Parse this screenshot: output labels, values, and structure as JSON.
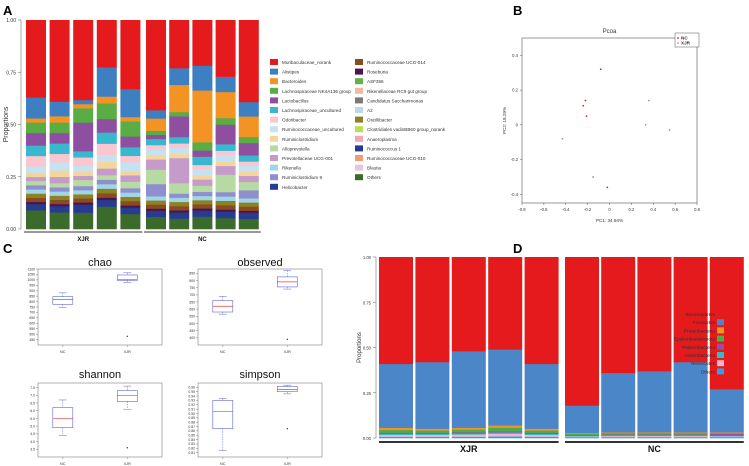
{
  "panel_letters": [
    "A",
    "B",
    "C",
    "D"
  ],
  "colors": {
    "Muribaculaceae_norank": "#e41a1c",
    "Alistipes": "#3d7fc1",
    "Bacteroides": "#f39323",
    "Lachnospiraceae NK4A136 group": "#5aac44",
    "Lactobacillus": "#8e4fa0",
    "Lachnospiraceae_uncultured": "#37b8cf",
    "Odoribacter": "#fac6cf",
    "Ruminococcaceae_uncultured": "#c6e2f0",
    "Ruminiclostridium": "#f4d69c",
    "Alloprevotella": "#b7daa2",
    "Prevotellaceae UCG-001": "#c59bc9",
    "Rikenella": "#9fd5e4",
    "Ruminiclostridium 9": "#8f8fcf",
    "Helicobacter": "#253c8f",
    "Ruminococcaceae UCG-014": "#8a4b1f",
    "Roseburia": "#4b1451",
    "ASF356": "#60b348",
    "Rikenellaceae RC9 gut group": "#f2b9a0",
    "Candidatus Saccharimonas": "#7a7a7a",
    "A2": "#bcd9ec",
    "Oscillibacter": "#8d8223",
    "Clostridiales vadinBB60 group_norank": "#b9e04d",
    "Anaeroplasma": "#f6a3b7",
    "Ruminococcus 1": "#283a8f",
    "Ruminococcaceae UCG-010": "#f39b74",
    "Blautia": "#e8c5df",
    "Others": "#3b6b2a",
    "Bacteroidetes": "#e41a1c",
    "Firmicutes": "#4a86c8",
    "Proteobacteria": "#f39323",
    "Epsilonbacteraeota": "#4cad4a",
    "Patescibacteria": "#984ea3",
    "Actinobacteria": "#37b8cf",
    "Tenericutes": "#f7b6c8",
    "OthersD": "#2f9fe8",
    "boxLine": "#5a64d6",
    "medianLine": "#e8413a"
  },
  "chart_data": [
    {
      "panel": "A",
      "type": "bar",
      "stacked": true,
      "ylabel": "Proportions",
      "yticks": [
        "0.00",
        "0.25",
        "0.50",
        "0.75",
        "1.00"
      ],
      "ylim": [
        0,
        1
      ],
      "groups": [
        {
          "label": "XJR",
          "samples": 5
        },
        {
          "label": "NC",
          "samples": 5
        }
      ],
      "series_order_bottom_to_top": [
        "Others",
        "Helicobacter",
        "Ruminococcus 1",
        "Roseburia",
        "Ruminococcaceae UCG-014",
        "Oscillibacter",
        "Rikenella",
        "Ruminiclostridium 9",
        "Alloprevotella",
        "Prevotellaceae UCG-001",
        "Ruminiclostridium",
        "Ruminococcaceae_uncultured",
        "Odoribacter",
        "Lachnospiraceae_uncultured",
        "Lactobacillus",
        "Lachnospiraceae NK4A136 group",
        "Bacteroides",
        "Alistipes",
        "Muribaculaceae_norank"
      ],
      "samples": [
        {
          "Others": 0.09,
          "Helicobacter": 0.02,
          "Ruminococcus 1": 0.01,
          "Roseburia": 0.01,
          "Ruminococcaceae UCG-014": 0.02,
          "Oscillibacter": 0.02,
          "Rikenella": 0.02,
          "Ruminiclostridium 9": 0.02,
          "Alloprevotella": 0.02,
          "Prevotellaceae UCG-001": 0.02,
          "Ruminiclostridium": 0.02,
          "Ruminococcaceae_uncultured": 0.03,
          "Odoribacter": 0.05,
          "Lachnospiraceae_uncultured": 0.05,
          "Lactobacillus": 0.06,
          "Lachnospiraceae NK4A136 group": 0.05,
          "Bacteroides": 0.02,
          "Alistipes": 0.1,
          "Muribaculaceae_norank": 0.37
        },
        {
          "Others": 0.08,
          "Helicobacter": 0.02,
          "Ruminococcus 1": 0.01,
          "Roseburia": 0.01,
          "Ruminococcaceae UCG-014": 0.02,
          "Oscillibacter": 0.02,
          "Rikenella": 0.02,
          "Ruminiclostridium 9": 0.02,
          "Alloprevotella": 0.02,
          "Prevotellaceae UCG-001": 0.03,
          "Ruminiclostridium": 0.03,
          "Ruminococcaceae_uncultured": 0.04,
          "Odoribacter": 0.04,
          "Lachnospiraceae_uncultured": 0.05,
          "Lactobacillus": 0.05,
          "Lachnospiraceae NK4A136 group": 0.05,
          "Bacteroides": 0.03,
          "Alistipes": 0.07,
          "Muribaculaceae_norank": 0.39
        },
        {
          "Others": 0.08,
          "Helicobacter": 0.02,
          "Ruminococcus 1": 0.02,
          "Roseburia": 0.01,
          "Ruminococcaceae UCG-014": 0.02,
          "Oscillibacter": 0.02,
          "Rikenella": 0.02,
          "Ruminiclostridium 9": 0.02,
          "Alloprevotella": 0.03,
          "Prevotellaceae UCG-001": 0.02,
          "Ruminiclostridium": 0.02,
          "Ruminococcaceae_uncultured": 0.03,
          "Odoribacter": 0.04,
          "Lachnospiraceae_uncultured": 0.03,
          "Lactobacillus": 0.14,
          "Lachnospiraceae NK4A136 group": 0.07,
          "Bacteroides": 0.02,
          "Alistipes": 0.02,
          "Muribaculaceae_norank": 0.39
        },
        {
          "Others": 0.1,
          "Helicobacter": 0.02,
          "Ruminococcus 1": 0.01,
          "Roseburia": 0.01,
          "Ruminococcaceae UCG-014": 0.02,
          "Oscillibacter": 0.02,
          "Rikenella": 0.02,
          "Ruminiclostridium 9": 0.02,
          "Alloprevotella": 0.02,
          "Prevotellaceae UCG-001": 0.03,
          "Ruminiclostridium": 0.03,
          "Ruminococcaceae_uncultured": 0.03,
          "Odoribacter": 0.05,
          "Lachnospiraceae_uncultured": 0.05,
          "Lactobacillus": 0.06,
          "Lachnospiraceae NK4A136 group": 0.07,
          "Bacteroides": 0.03,
          "Alistipes": 0.13,
          "Muribaculaceae_norank": 0.21
        },
        {
          "Others": 0.07,
          "Helicobacter": 0.02,
          "Ruminococcus 1": 0.01,
          "Roseburia": 0.01,
          "Ruminococcaceae UCG-014": 0.02,
          "Oscillibacter": 0.02,
          "Rikenella": 0.02,
          "Ruminiclostridium 9": 0.02,
          "Alloprevotella": 0.03,
          "Prevotellaceae UCG-001": 0.03,
          "Ruminiclostridium": 0.02,
          "Ruminococcaceae_uncultured": 0.04,
          "Odoribacter": 0.03,
          "Lachnospiraceae_uncultured": 0.04,
          "Lactobacillus": 0.05,
          "Lachnospiraceae NK4A136 group": 0.07,
          "Bacteroides": 0.02,
          "Alistipes": 0.13,
          "Muribaculaceae_norank": 0.32
        },
        {
          "Others": 0.06,
          "Helicobacter": 0.02,
          "Ruminococcus 1": 0.01,
          "Roseburia": 0.01,
          "Ruminococcaceae UCG-014": 0.02,
          "Oscillibacter": 0.02,
          "Rikenella": 0.02,
          "Ruminiclostridium 9": 0.06,
          "Alloprevotella": 0.07,
          "Prevotellaceae UCG-001": 0.05,
          "Ruminiclostridium": 0.02,
          "Ruminococcaceae_uncultured": 0.03,
          "Odoribacter": 0.02,
          "Lachnospiraceae_uncultured": 0.03,
          "Lactobacillus": 0.02,
          "Lachnospiraceae NK4A136 group": 0.02,
          "Bacteroides": 0.06,
          "Alistipes": 0.04,
          "Muribaculaceae_norank": 0.44
        },
        {
          "Others": 0.05,
          "Helicobacter": 0.02,
          "Ruminococcus 1": 0.01,
          "Roseburia": 0.01,
          "Ruminococcaceae UCG-014": 0.02,
          "Oscillibacter": 0.02,
          "Rikenella": 0.02,
          "Ruminiclostridium 9": 0.02,
          "Alloprevotella": 0.05,
          "Prevotellaceae UCG-001": 0.12,
          "Ruminiclostridium": 0.02,
          "Ruminococcaceae_uncultured": 0.03,
          "Odoribacter": 0.02,
          "Lachnospiraceae_uncultured": 0.03,
          "Lactobacillus": 0.1,
          "Lachnospiraceae NK4A136 group": 0.02,
          "Bacteroides": 0.13,
          "Alistipes": 0.08,
          "Muribaculaceae_norank": 0.23
        },
        {
          "Others": 0.06,
          "Helicobacter": 0.02,
          "Ruminococcus 1": 0.01,
          "Roseburia": 0.01,
          "Ruminococcaceae UCG-014": 0.02,
          "Oscillibacter": 0.02,
          "Rikenella": 0.02,
          "Ruminiclostridium 9": 0.02,
          "Alloprevotella": 0.03,
          "Prevotellaceae UCG-001": 0.03,
          "Ruminiclostridium": 0.02,
          "Ruminococcaceae_uncultured": 0.03,
          "Odoribacter": 0.02,
          "Lachnospiraceae_uncultured": 0.04,
          "Lactobacillus": 0.03,
          "Lachnospiraceae NK4A136 group": 0.04,
          "Bacteroides": 0.25,
          "Alistipes": 0.12,
          "Muribaculaceae_norank": 0.22
        },
        {
          "Others": 0.05,
          "Helicobacter": 0.02,
          "Ruminococcus 1": 0.01,
          "Roseburia": 0.01,
          "Ruminococcaceae UCG-014": 0.02,
          "Oscillibacter": 0.02,
          "Rikenella": 0.02,
          "Ruminiclostridium 9": 0.02,
          "Alloprevotella": 0.08,
          "Prevotellaceae UCG-001": 0.04,
          "Ruminiclostridium": 0.02,
          "Ruminococcaceae_uncultured": 0.03,
          "Odoribacter": 0.02,
          "Lachnospiraceae_uncultured": 0.03,
          "Lactobacillus": 0.09,
          "Lachnospiraceae NK4A136 group": 0.03,
          "Bacteroides": 0.12,
          "Alistipes": 0.07,
          "Muribaculaceae_norank": 0.26
        },
        {
          "Others": 0.05,
          "Helicobacter": 0.02,
          "Ruminococcus 1": 0.01,
          "Roseburia": 0.01,
          "Ruminococcaceae UCG-014": 0.02,
          "Oscillibacter": 0.02,
          "Rikenella": 0.02,
          "Ruminiclostridium 9": 0.04,
          "Alloprevotella": 0.04,
          "Prevotellaceae UCG-001": 0.03,
          "Ruminiclostridium": 0.02,
          "Ruminococcaceae_uncultured": 0.03,
          "Odoribacter": 0.02,
          "Lachnospiraceae_uncultured": 0.03,
          "Lactobacillus": 0.06,
          "Lachnospiraceae NK4A136 group": 0.03,
          "Bacteroides": 0.1,
          "Alistipes": 0.07,
          "Muribaculaceae_norank": 0.4
        }
      ],
      "legend": [
        "Muribaculaceae_norank",
        "Alistipes",
        "Bacteroides",
        "Lachnospiraceae NK4A136 group",
        "Lactobacillus",
        "Lachnospiraceae_uncultured",
        "Odoribacter",
        "Ruminococcaceae_uncultured",
        "Ruminiclostridium",
        "Alloprevotella",
        "Prevotellaceae UCG-001",
        "Rikenella",
        "Ruminiclostridium 9",
        "Helicobacter",
        "Ruminococcaceae UCG-014",
        "Roseburia",
        "ASF356",
        "Rikenellaceae RC9 gut group",
        "Candidatus Saccharimonas",
        "A2",
        "Oscillibacter",
        "Clostridiales vadinBB60 group_norank",
        "Anaeroplasma",
        "Ruminococcus 1",
        "Ruminococcaceae UCG-010",
        "Blautia",
        "Others"
      ]
    },
    {
      "panel": "B",
      "type": "scatter",
      "title": "Pcoa",
      "xlabel": "PC1: 34.94%",
      "ylabel": "PC2: 18.29%",
      "xlim": [
        -0.8,
        0.8
      ],
      "ylim": [
        -0.45,
        0.5
      ],
      "xticks": [
        "-0.8",
        "-0.6",
        "-0.4",
        "-0.2",
        "0",
        "0.2",
        "0.4",
        "0.6",
        "0.8"
      ],
      "yticks": [
        "0.4",
        "0.2",
        "0",
        "-0.2",
        "-0.4"
      ],
      "legend": [
        "NC",
        "XJR"
      ],
      "points": [
        {
          "group": "NC",
          "x": -0.08,
          "y": 0.32
        },
        {
          "group": "NC",
          "x": -0.22,
          "y": 0.14
        },
        {
          "group": "NC",
          "x": -0.21,
          "y": 0.05
        },
        {
          "group": "NC",
          "x": -0.02,
          "y": -0.36
        },
        {
          "group": "NC",
          "x": -0.24,
          "y": 0.11
        },
        {
          "group": "XJR",
          "x": 0.36,
          "y": 0.14
        },
        {
          "group": "XJR",
          "x": 0.33,
          "y": 0.0
        },
        {
          "group": "XJR",
          "x": 0.55,
          "y": -0.03
        },
        {
          "group": "XJR",
          "x": -0.43,
          "y": -0.08
        },
        {
          "group": "XJR",
          "x": -0.15,
          "y": -0.3
        }
      ]
    },
    {
      "panel": "C",
      "type": "box",
      "categories": [
        "NC",
        "XJR"
      ],
      "plots": [
        {
          "title": "chao",
          "ylim": [
            400,
            1100
          ],
          "yticks": [
            "450",
            "500",
            "550",
            "600",
            "650",
            "700",
            "750",
            "800",
            "850",
            "900",
            "950",
            "1000",
            "1050",
            "1100"
          ],
          "boxes": [
            {
              "min": 745,
              "q1": 775,
              "median": 820,
              "q3": 845,
              "max": 880
            },
            {
              "min": 975,
              "q1": 995,
              "median": 1005,
              "q3": 1045,
              "max": 1065,
              "outliers": [
                480
              ]
            }
          ]
        },
        {
          "title": "observed",
          "ylim": [
            350,
            880
          ],
          "yticks": [
            "400",
            "450",
            "500",
            "550",
            "600",
            "650",
            "700",
            "750",
            "800",
            "850"
          ],
          "boxes": [
            {
              "min": 565,
              "q1": 580,
              "median": 620,
              "q3": 660,
              "max": 690
            },
            {
              "min": 740,
              "q1": 755,
              "median": 790,
              "q3": 825,
              "max": 870,
              "outliers": [
                390
              ]
            }
          ]
        },
        {
          "title": "shannon",
          "ylim": [
            3.0,
            7.8
          ],
          "yticks": [
            "3.5",
            "4.0",
            "4.5",
            "5.0",
            "5.5",
            "6.0",
            "6.5",
            "7.0",
            "7.5"
          ],
          "boxes": [
            {
              "min": 4.4,
              "q1": 4.9,
              "median": 5.5,
              "q3": 6.2,
              "max": 6.7
            },
            {
              "min": 6.1,
              "q1": 6.6,
              "median": 7.0,
              "q3": 7.3,
              "max": 7.6,
              "outliers": [
                3.6
              ]
            }
          ]
        },
        {
          "title": "simpson",
          "ylim": [
            0.8,
            0.97
          ],
          "yticks": [
            "0.81",
            "0.82",
            "0.83",
            "0.84",
            "0.85",
            "0.86",
            "0.87",
            "0.88",
            "0.89",
            "0.90",
            "0.91",
            "0.92",
            "0.93",
            "0.94",
            "0.95",
            "0.96"
          ],
          "boxes": [
            {
              "min": 0.815,
              "q1": 0.865,
              "median": 0.905,
              "q3": 0.93,
              "max": 0.935
            },
            {
              "min": 0.945,
              "q1": 0.95,
              "median": 0.955,
              "q3": 0.962,
              "max": 0.965,
              "outliers": [
                0.865
              ]
            }
          ]
        }
      ]
    },
    {
      "panel": "D",
      "type": "bar",
      "stacked": true,
      "ylabel": "Proportions",
      "yticks": [
        "0.00",
        "0.25",
        "0.50",
        "0.75",
        "1.00"
      ],
      "ylim": [
        0,
        1
      ],
      "groups": [
        {
          "label": "XJR",
          "samples": 5
        },
        {
          "label": "NC",
          "samples": 5
        }
      ],
      "series_order_bottom_to_top": [
        "Others",
        "Tenericutes",
        "Actinobacteria",
        "Patescibacteria",
        "Epsilonbacteraeota",
        "Proteobacteria",
        "Firmicutes",
        "Bacteroidetes"
      ],
      "samples": [
        {
          "Others": 0.008,
          "Tenericutes": 0.01,
          "Actinobacteria": 0.006,
          "Patescibacteria": 0.006,
          "Epsilonbacteraeota": 0.015,
          "Proteobacteria": 0.012,
          "Firmicutes": 0.353,
          "Bacteroidetes": 0.59
        },
        {
          "Others": 0.008,
          "Tenericutes": 0.01,
          "Actinobacteria": 0.006,
          "Patescibacteria": 0.006,
          "Epsilonbacteraeota": 0.012,
          "Proteobacteria": 0.01,
          "Firmicutes": 0.368,
          "Bacteroidetes": 0.58
        },
        {
          "Others": 0.008,
          "Tenericutes": 0.012,
          "Actinobacteria": 0.006,
          "Patescibacteria": 0.006,
          "Epsilonbacteraeota": 0.015,
          "Proteobacteria": 0.01,
          "Firmicutes": 0.423,
          "Bacteroidetes": 0.52
        },
        {
          "Others": 0.01,
          "Tenericutes": 0.014,
          "Actinobacteria": 0.008,
          "Patescibacteria": 0.006,
          "Epsilonbacteraeota": 0.02,
          "Proteobacteria": 0.012,
          "Firmicutes": 0.42,
          "Bacteroidetes": 0.51
        },
        {
          "Others": 0.008,
          "Tenericutes": 0.01,
          "Actinobacteria": 0.006,
          "Patescibacteria": 0.006,
          "Epsilonbacteraeota": 0.012,
          "Proteobacteria": 0.01,
          "Firmicutes": 0.358,
          "Bacteroidetes": 0.59
        },
        {
          "Others": 0.006,
          "Tenericutes": 0.004,
          "Actinobacteria": 0.004,
          "Patescibacteria": 0.004,
          "Epsilonbacteraeota": 0.006,
          "Proteobacteria": 0.004,
          "Firmicutes": 0.152,
          "Bacteroidetes": 0.82
        },
        {
          "Others": 0.006,
          "Tenericutes": 0.006,
          "Actinobacteria": 0.004,
          "Patescibacteria": 0.004,
          "Epsilonbacteraeota": 0.008,
          "Proteobacteria": 0.004,
          "Firmicutes": 0.328,
          "Bacteroidetes": 0.64
        },
        {
          "Others": 0.006,
          "Tenericutes": 0.006,
          "Actinobacteria": 0.004,
          "Patescibacteria": 0.004,
          "Epsilonbacteraeota": 0.008,
          "Proteobacteria": 0.004,
          "Firmicutes": 0.338,
          "Bacteroidetes": 0.63
        },
        {
          "Others": 0.006,
          "Tenericutes": 0.006,
          "Actinobacteria": 0.004,
          "Patescibacteria": 0.004,
          "Epsilonbacteraeota": 0.008,
          "Proteobacteria": 0.004,
          "Firmicutes": 0.388,
          "Bacteroidetes": 0.58
        },
        {
          "Others": 0.006,
          "Tenericutes": 0.004,
          "Actinobacteria": 0.004,
          "Patescibacteria": 0.01,
          "Epsilonbacteraeota": 0.004,
          "Proteobacteria": 0.004,
          "Firmicutes": 0.238,
          "Bacteroidetes": 0.73
        }
      ],
      "legend": [
        "Bacteroidetes",
        "Firmicutes",
        "Proteobacteria",
        "Epsilonbacteraeota",
        "Patescibacteria",
        "Actinobacteria",
        "Tenericutes",
        "Others"
      ]
    }
  ]
}
